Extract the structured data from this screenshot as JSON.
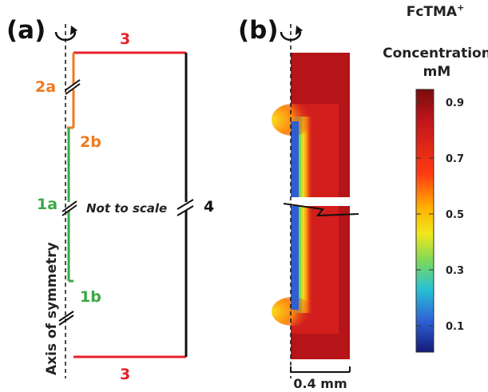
{
  "panel_a": {
    "label": "(a)",
    "segment_labels": {
      "top": "3",
      "bottom": "3",
      "right": "4",
      "s2a": "2a",
      "s2b": "2b",
      "s1a": "1a",
      "s1b": "1b"
    },
    "note": "Not to scale",
    "axis_label": "Axis of symmetry"
  },
  "panel_b": {
    "label": "(b)",
    "scale_bar": "0.4 mm"
  },
  "colorbar": {
    "title_line1": "FcTMA",
    "title_sup": "+",
    "title_line2": "Concentration",
    "title_line3": "mM",
    "ticks": [
      "0.9",
      "0.7",
      "0.5",
      "0.3",
      "0.1"
    ]
  },
  "colors": {
    "red": "#e8202a",
    "orange": "#f07a1e",
    "green": "#3aa845",
    "black": "#111111"
  }
}
